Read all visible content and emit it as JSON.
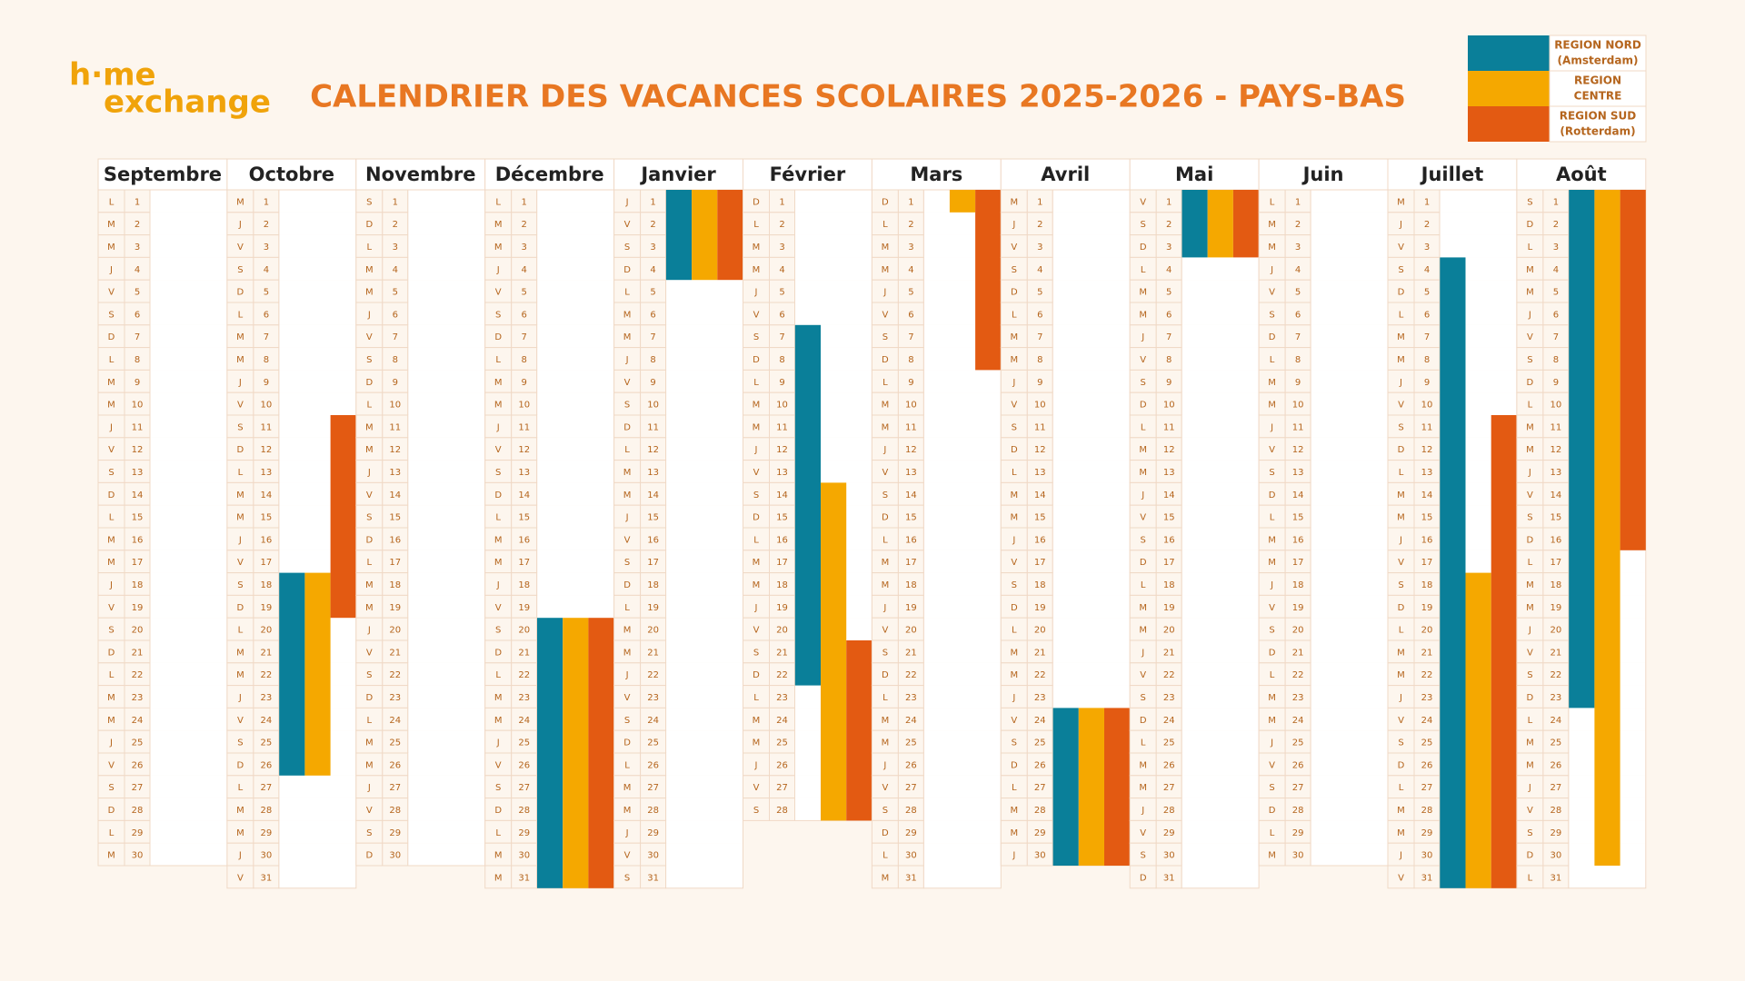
{
  "logo": {
    "line1": "h·me",
    "line2": "exchange"
  },
  "title": "CALENDRIER DES VACANCES SCOLAIRES 2025-2026 - PAYS-BAS",
  "legend": [
    {
      "name": "REGION NORD",
      "sub": "(Amsterdam)",
      "color": "#0a7f99"
    },
    {
      "name": "REGION",
      "sub": "CENTRE",
      "color": "#f5a800"
    },
    {
      "name": "REGION SUD",
      "sub": "(Rotterdam)",
      "color": "#e35a12"
    }
  ],
  "months": [
    {
      "name": "Septembre",
      "weekdays": [
        "L",
        "M",
        "M",
        "J",
        "V",
        "S",
        "D",
        "L",
        "M",
        "M",
        "J",
        "V",
        "S",
        "D",
        "L",
        "M",
        "M",
        "J",
        "V",
        "S",
        "D",
        "L",
        "M",
        "M",
        "J",
        "V",
        "S",
        "D",
        "L",
        "M"
      ],
      "days": [
        1,
        2,
        3,
        4,
        5,
        6,
        7,
        8,
        9,
        10,
        11,
        12,
        13,
        14,
        15,
        16,
        17,
        18,
        19,
        20,
        21,
        22,
        23,
        24,
        25,
        26,
        27,
        28,
        29,
        30
      ],
      "vacations": [
        null,
        null,
        null
      ]
    },
    {
      "name": "Octobre",
      "weekdays": [
        "M",
        "J",
        "V",
        "S",
        "D",
        "L",
        "M",
        "M",
        "J",
        "V",
        "S",
        "D",
        "L",
        "M",
        "M",
        "J",
        "V",
        "S",
        "D",
        "L",
        "M",
        "M",
        "J",
        "V",
        "S",
        "D",
        "L",
        "M",
        "M",
        "J",
        "V"
      ],
      "days": [
        1,
        2,
        3,
        4,
        5,
        6,
        7,
        8,
        9,
        10,
        11,
        12,
        13,
        14,
        15,
        16,
        17,
        18,
        19,
        20,
        21,
        22,
        23,
        24,
        25,
        26,
        27,
        28,
        29,
        30,
        31
      ],
      "vacations": [
        [
          18,
          26
        ],
        [
          18,
          26
        ],
        [
          11,
          19
        ]
      ]
    },
    {
      "name": "Novembre",
      "weekdays": [
        "S",
        "D",
        "L",
        "M",
        "M",
        "J",
        "V",
        "S",
        "D",
        "L",
        "M",
        "M",
        "J",
        "V",
        "S",
        "D",
        "L",
        "M",
        "M",
        "J",
        "V",
        "S",
        "D",
        "L",
        "M",
        "M",
        "J",
        "V",
        "S",
        "D"
      ],
      "days": [
        1,
        2,
        3,
        4,
        5,
        6,
        7,
        8,
        9,
        10,
        11,
        12,
        13,
        14,
        15,
        16,
        17,
        18,
        19,
        20,
        21,
        22,
        23,
        24,
        25,
        26,
        27,
        28,
        29,
        30
      ],
      "vacations": [
        null,
        null,
        null
      ]
    },
    {
      "name": "Décembre",
      "weekdays": [
        "L",
        "M",
        "M",
        "J",
        "V",
        "S",
        "D",
        "L",
        "M",
        "M",
        "J",
        "V",
        "S",
        "D",
        "L",
        "M",
        "M",
        "J",
        "V",
        "S",
        "D",
        "L",
        "M",
        "M",
        "J",
        "V",
        "S",
        "D",
        "L",
        "M",
        "M"
      ],
      "days": [
        1,
        2,
        3,
        4,
        5,
        6,
        7,
        8,
        9,
        10,
        11,
        12,
        13,
        14,
        15,
        16,
        17,
        18,
        19,
        20,
        21,
        22,
        23,
        24,
        25,
        26,
        27,
        28,
        29,
        30,
        31
      ],
      "vacations": [
        [
          20,
          31
        ],
        [
          20,
          31
        ],
        [
          20,
          31
        ]
      ]
    },
    {
      "name": "Janvier",
      "weekdays": [
        "J",
        "V",
        "S",
        "D",
        "L",
        "M",
        "M",
        "J",
        "V",
        "S",
        "D",
        "L",
        "M",
        "M",
        "J",
        "V",
        "S",
        "D",
        "L",
        "M",
        "M",
        "J",
        "V",
        "S",
        "D",
        "L",
        "M",
        "M",
        "J",
        "V",
        "S"
      ],
      "days": [
        1,
        2,
        3,
        4,
        5,
        6,
        7,
        8,
        9,
        10,
        11,
        12,
        13,
        14,
        15,
        16,
        17,
        18,
        19,
        20,
        21,
        22,
        23,
        24,
        25,
        26,
        27,
        28,
        29,
        30,
        31
      ],
      "vacations": [
        [
          1,
          4
        ],
        [
          1,
          4
        ],
        [
          1,
          4
        ]
      ]
    },
    {
      "name": "Février",
      "weekdays": [
        "D",
        "L",
        "M",
        "M",
        "J",
        "V",
        "S",
        "D",
        "L",
        "M",
        "M",
        "J",
        "V",
        "S",
        "D",
        "L",
        "M",
        "M",
        "J",
        "V",
        "S",
        "D",
        "L",
        "M",
        "M",
        "J",
        "V",
        "S"
      ],
      "days": [
        1,
        2,
        3,
        4,
        5,
        6,
        7,
        8,
        9,
        10,
        11,
        12,
        13,
        14,
        15,
        16,
        17,
        18,
        19,
        20,
        21,
        22,
        23,
        24,
        25,
        26,
        27,
        28
      ],
      "vacations": [
        [
          7,
          22
        ],
        [
          14,
          28
        ],
        [
          21,
          28
        ]
      ]
    },
    {
      "name": "Mars",
      "weekdays": [
        "D",
        "L",
        "M",
        "M",
        "J",
        "V",
        "S",
        "D",
        "L",
        "M",
        "M",
        "J",
        "V",
        "S",
        "D",
        "L",
        "M",
        "M",
        "J",
        "V",
        "S",
        "D",
        "L",
        "M",
        "M",
        "J",
        "V",
        "S",
        "D",
        "L",
        "M"
      ],
      "days": [
        1,
        2,
        3,
        4,
        5,
        6,
        7,
        8,
        9,
        10,
        11,
        12,
        13,
        14,
        15,
        16,
        17,
        18,
        19,
        20,
        21,
        22,
        23,
        24,
        25,
        26,
        27,
        28,
        29,
        30,
        31
      ],
      "vacations": [
        null,
        [
          1,
          1
        ],
        [
          1,
          8
        ]
      ]
    },
    {
      "name": "Avril",
      "weekdays": [
        "M",
        "J",
        "V",
        "S",
        "D",
        "L",
        "M",
        "M",
        "J",
        "V",
        "S",
        "D",
        "L",
        "M",
        "M",
        "J",
        "V",
        "S",
        "D",
        "L",
        "M",
        "M",
        "J",
        "V",
        "S",
        "D",
        "L",
        "M",
        "M",
        "J"
      ],
      "days": [
        1,
        2,
        3,
        4,
        5,
        6,
        7,
        8,
        9,
        10,
        11,
        12,
        13,
        14,
        15,
        16,
        17,
        18,
        19,
        20,
        21,
        22,
        23,
        24,
        25,
        26,
        27,
        28,
        29,
        30
      ],
      "vacations": [
        [
          24,
          30
        ],
        [
          24,
          30
        ],
        [
          24,
          30
        ]
      ]
    },
    {
      "name": "Mai",
      "weekdays": [
        "V",
        "S",
        "D",
        "L",
        "M",
        "M",
        "J",
        "V",
        "S",
        "D",
        "L",
        "M",
        "M",
        "J",
        "V",
        "S",
        "D",
        "L",
        "M",
        "M",
        "J",
        "V",
        "S",
        "D",
        "L",
        "M",
        "M",
        "J",
        "V",
        "S",
        "D"
      ],
      "days": [
        1,
        2,
        3,
        4,
        5,
        6,
        7,
        8,
        9,
        10,
        11,
        12,
        13,
        14,
        15,
        16,
        17,
        18,
        19,
        20,
        21,
        22,
        23,
        24,
        25,
        26,
        27,
        28,
        29,
        30,
        31
      ],
      "vacations": [
        [
          1,
          3
        ],
        [
          1,
          3
        ],
        [
          1,
          3
        ]
      ]
    },
    {
      "name": "Juin",
      "weekdays": [
        "L",
        "M",
        "M",
        "J",
        "V",
        "S",
        "D",
        "L",
        "M",
        "M",
        "J",
        "V",
        "S",
        "D",
        "L",
        "M",
        "M",
        "J",
        "V",
        "S",
        "D",
        "L",
        "M",
        "M",
        "J",
        "V",
        "S",
        "D",
        "L",
        "M"
      ],
      "days": [
        1,
        2,
        3,
        4,
        5,
        6,
        7,
        8,
        9,
        10,
        11,
        12,
        13,
        14,
        15,
        16,
        17,
        18,
        19,
        20,
        21,
        22,
        23,
        24,
        25,
        26,
        27,
        28,
        29,
        30
      ],
      "vacations": [
        null,
        null,
        null
      ]
    },
    {
      "name": "Juillet",
      "weekdays": [
        "M",
        "J",
        "V",
        "S",
        "D",
        "L",
        "M",
        "M",
        "J",
        "V",
        "S",
        "D",
        "L",
        "M",
        "M",
        "J",
        "V",
        "S",
        "D",
        "L",
        "M",
        "M",
        "J",
        "V",
        "S",
        "D",
        "L",
        "M",
        "M",
        "J",
        "V"
      ],
      "days": [
        1,
        2,
        3,
        4,
        5,
        6,
        7,
        8,
        9,
        10,
        11,
        12,
        13,
        14,
        15,
        16,
        17,
        18,
        19,
        20,
        21,
        22,
        23,
        24,
        25,
        26,
        27,
        28,
        29,
        30,
        31
      ],
      "vacations": [
        [
          4,
          31
        ],
        [
          18,
          31
        ],
        [
          11,
          31
        ]
      ]
    },
    {
      "name": "Août",
      "weekdays": [
        "S",
        "D",
        "L",
        "M",
        "M",
        "J",
        "V",
        "S",
        "D",
        "L",
        "M",
        "M",
        "J",
        "V",
        "S",
        "D",
        "L",
        "M",
        "M",
        "J",
        "V",
        "S",
        "D",
        "L",
        "M",
        "M",
        "J",
        "V",
        "S",
        "D",
        "L"
      ],
      "days": [
        1,
        2,
        3,
        4,
        5,
        6,
        7,
        8,
        9,
        10,
        11,
        12,
        13,
        14,
        15,
        16,
        17,
        18,
        19,
        20,
        21,
        22,
        23,
        24,
        25,
        26,
        27,
        28,
        29,
        30,
        31
      ],
      "vacations": [
        [
          1,
          23
        ],
        [
          1,
          30
        ],
        [
          1,
          16
        ]
      ]
    }
  ]
}
